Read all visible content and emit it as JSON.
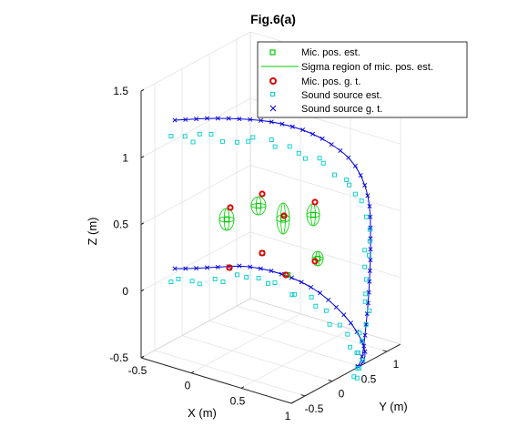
{
  "chart_data": {
    "type": "scatter",
    "title": "Fig.6(a)",
    "xlabel": "X (m)",
    "ylabel": "Y (m)",
    "zlabel": "Z (m)",
    "xlim": [
      -0.5,
      1.0
    ],
    "ylim": [
      -0.75,
      1.25
    ],
    "zlim": [
      -0.5,
      1.5
    ],
    "xticks": [
      "-0.5",
      "0",
      "0.5",
      "1"
    ],
    "yticks": [
      "-0.5",
      "0",
      "0.5",
      "1"
    ],
    "zticks": [
      "-0.5",
      "0",
      "0.5",
      "1",
      "1.5"
    ],
    "grid": true,
    "legend_position": "top-right",
    "legend": [
      "Mic. pos. est.",
      "Sigma region of mic. pos. est.",
      "Mic. pos. g. t.",
      "Sound source est.",
      "Sound source g. t."
    ],
    "colors": {
      "mic_est": "#00cc00",
      "sigma": "#00cc00",
      "mic_gt": "#dd0000",
      "source_est": "#00cccc",
      "source_gt": "#0000dd"
    },
    "series": [
      {
        "name": "Mic. pos. g. t.",
        "points": [
          [
            0.27,
            0.55,
            0.62
          ],
          [
            0.55,
            0.5,
            0.7
          ],
          [
            0.6,
            0.05,
            0.55
          ],
          [
            0.9,
            0.55,
            0.68
          ],
          [
            0.45,
            0.35,
            0.15
          ],
          [
            0.5,
            -0.1,
            0.05
          ],
          [
            0.75,
            0.2,
            0.02
          ],
          [
            0.95,
            0.5,
            0.18
          ]
        ]
      },
      {
        "name": "Mic. pos. est.",
        "points": [
          [
            0.28,
            0.56,
            0.6
          ],
          [
            0.56,
            0.48,
            0.68
          ],
          [
            0.62,
            0.04,
            0.55
          ],
          [
            0.9,
            0.56,
            0.66
          ],
          [
            0.46,
            0.36,
            0.16
          ],
          [
            0.52,
            -0.08,
            0.06
          ],
          [
            0.76,
            0.22,
            0.03
          ],
          [
            0.95,
            0.52,
            0.2
          ]
        ]
      },
      {
        "name": "Sound source g. t.",
        "note_shape": "helix"
      },
      {
        "name": "Sound source est.",
        "note_shape": "helix offset"
      }
    ]
  }
}
